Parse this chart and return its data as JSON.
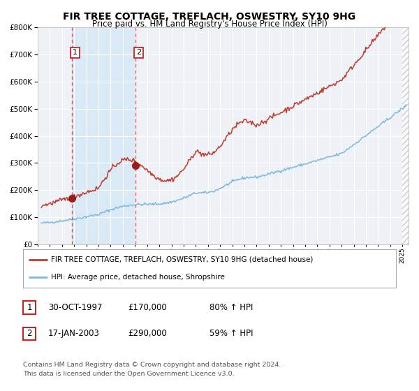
{
  "title": "FIR TREE COTTAGE, TREFLACH, OSWESTRY, SY10 9HG",
  "subtitle": "Price paid vs. HM Land Registry's House Price Index (HPI)",
  "legend_line1": "FIR TREE COTTAGE, TREFLACH, OSWESTRY, SY10 9HG (detached house)",
  "legend_line2": "HPI: Average price, detached house, Shropshire",
  "annotation1_date": "30-OCT-1997",
  "annotation1_price": "£170,000",
  "annotation1_hpi": "80% ↑ HPI",
  "annotation2_date": "17-JAN-2003",
  "annotation2_price": "£290,000",
  "annotation2_hpi": "59% ↑ HPI",
  "footer": "Contains HM Land Registry data © Crown copyright and database right 2024.\nThis data is licensed under the Open Government Licence v3.0.",
  "hpi_color": "#7fb8e0",
  "price_color": "#c0392b",
  "dot_color": "#9b1c1c",
  "shade_color": "#d9e9f5",
  "dashed_line_color": "#e05050",
  "background_color": "#ffffff",
  "plot_bg_color": "#eef2f7",
  "grid_color": "#ffffff",
  "ylim": [
    0,
    800000
  ],
  "xlim_start": 1995.3,
  "xlim_end": 2025.5,
  "sale1_x": 1997.83,
  "sale1_y": 170000,
  "sale2_x": 2003.04,
  "sale2_y": 290000,
  "shade_x1": 1997.83,
  "shade_x2": 2003.04
}
